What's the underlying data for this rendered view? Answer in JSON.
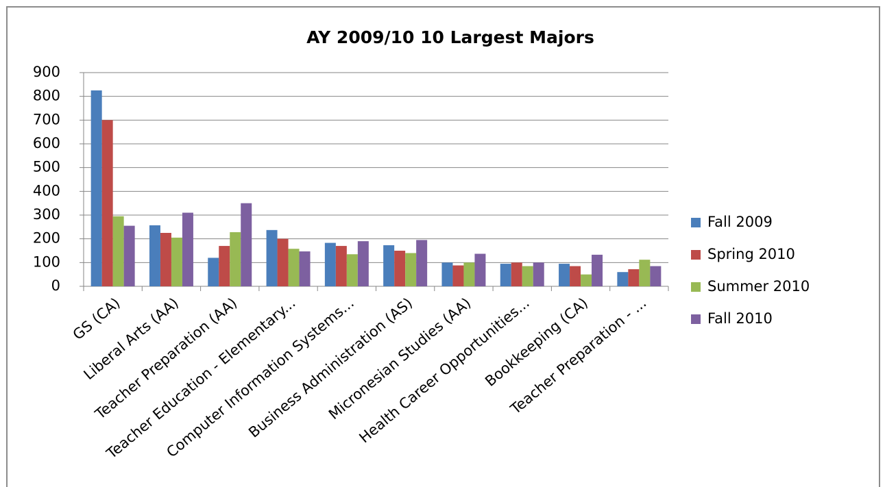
{
  "chart_data": {
    "type": "bar",
    "title": "AY 2009/10 10 Largest Majors",
    "categories": [
      "GS (CA)",
      "Liberal Arts (AA)",
      "Teacher Preparation (AA)",
      "Teacher Education - Elementary...",
      "Computer Information Systems...",
      "Business Administration (AS)",
      "Micronesian Studies (AA)",
      "Health Career Opportunities...",
      "Bookkeeping (CA)",
      "Teacher Preparation - ..."
    ],
    "series": [
      {
        "name": "Fall 2009",
        "color": "#4a7ebb",
        "values": [
          825,
          257,
          120,
          237,
          183,
          173,
          100,
          95,
          95,
          60
        ]
      },
      {
        "name": "Spring 2010",
        "color": "#be4b48",
        "values": [
          700,
          225,
          170,
          200,
          170,
          150,
          88,
          100,
          85,
          72
        ]
      },
      {
        "name": "Summer 2010",
        "color": "#98b954",
        "values": [
          295,
          205,
          228,
          158,
          135,
          140,
          100,
          85,
          50,
          112
        ]
      },
      {
        "name": "Fall 2010",
        "color": "#7d60a0",
        "values": [
          255,
          310,
          350,
          147,
          190,
          195,
          137,
          100,
          133,
          85
        ]
      }
    ],
    "ylim": [
      0,
      900
    ],
    "yticks": [
      0,
      100,
      200,
      300,
      400,
      500,
      600,
      700,
      800,
      900
    ],
    "grid": true,
    "legend": "right"
  }
}
